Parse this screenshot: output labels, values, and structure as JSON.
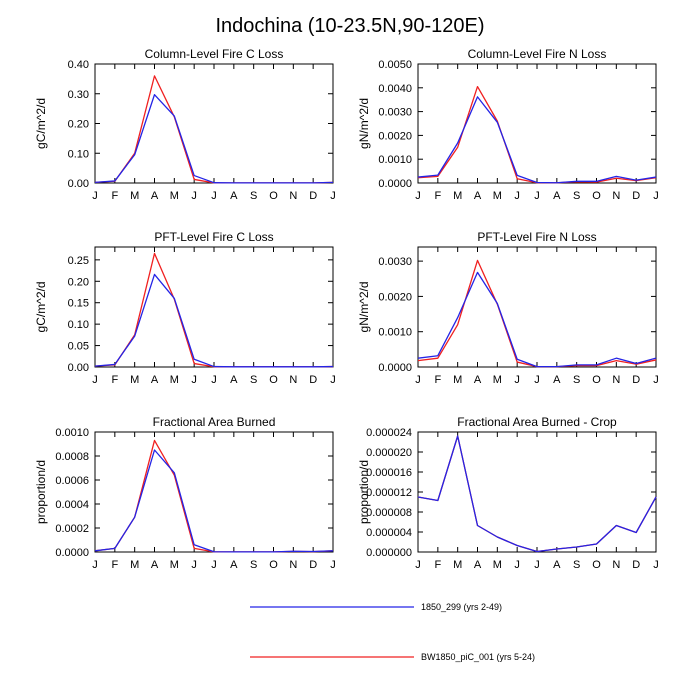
{
  "figure_title": "Indochina (10-23.5N,90-120E)",
  "colors": {
    "blue": "#2424e6",
    "red": "#f02020",
    "axis": "#000000"
  },
  "legend": [
    {
      "label": "1850_299 (yrs 2-49)",
      "color": "#2424e6"
    },
    {
      "label": "BW1850_piC_001 (yrs 5-24)",
      "color": "#f02020"
    }
  ],
  "chart_data": [
    {
      "type": "line",
      "title": "Column-Level Fire C Loss",
      "ylabel": "gC/m^2/d",
      "categories": [
        "J",
        "F",
        "M",
        "A",
        "M",
        "J",
        "J",
        "A",
        "S",
        "O",
        "N",
        "D",
        "J"
      ],
      "ylim": [
        0,
        0.4
      ],
      "yticks": [
        "0.00",
        "0.10",
        "0.20",
        "0.30",
        "0.40"
      ],
      "series": [
        {
          "name": "1850_299 (yrs 2-49)",
          "values": [
            0.002,
            0.007,
            0.095,
            0.297,
            0.225,
            0.025,
            0.001,
            0.0005,
            0.0005,
            0.0005,
            0.0005,
            0.0005,
            0.002
          ]
        },
        {
          "name": "BW1850_piC_001 (yrs 5-24)",
          "values": [
            0.002,
            0.006,
            0.1,
            0.36,
            0.222,
            0.012,
            0.0005,
            0.0005,
            0.0005,
            0.0005,
            0.0005,
            0.0005,
            0.002
          ]
        }
      ]
    },
    {
      "type": "line",
      "title": "Column-Level Fire N Loss",
      "ylabel": "gN/m^2/d",
      "categories": [
        "J",
        "F",
        "M",
        "A",
        "M",
        "J",
        "J",
        "A",
        "S",
        "O",
        "N",
        "D",
        "J"
      ],
      "ylim": [
        0,
        0.005
      ],
      "yticks": [
        "0.0000",
        "0.0010",
        "0.0020",
        "0.0030",
        "0.0040",
        "0.0050"
      ],
      "series": [
        {
          "name": "1850_299 (yrs 2-49)",
          "values": [
            0.00025,
            0.00033,
            0.00168,
            0.00362,
            0.00255,
            0.00032,
            2e-05,
            1e-05,
            7e-05,
            7e-05,
            0.00028,
            0.00012,
            0.00025
          ]
        },
        {
          "name": "BW1850_piC_001 (yrs 5-24)",
          "values": [
            0.00022,
            0.00028,
            0.0015,
            0.00405,
            0.0026,
            0.00018,
            1e-05,
            1e-05,
            5e-05,
            4e-05,
            0.0002,
            0.0001,
            0.00022
          ]
        }
      ]
    },
    {
      "type": "line",
      "title": "PFT-Level Fire C Loss",
      "ylabel": "gC/m^2/d",
      "categories": [
        "J",
        "F",
        "M",
        "A",
        "M",
        "J",
        "J",
        "A",
        "S",
        "O",
        "N",
        "D",
        "J"
      ],
      "ylim": [
        0,
        0.28
      ],
      "yticks": [
        "0.00",
        "0.05",
        "0.10",
        "0.15",
        "0.20",
        "0.25"
      ],
      "series": [
        {
          "name": "1850_299 (yrs 2-49)",
          "values": [
            0.002,
            0.006,
            0.072,
            0.216,
            0.16,
            0.018,
            0.001,
            0.0005,
            0.0005,
            0.0005,
            0.0005,
            0.0005,
            0.001
          ]
        },
        {
          "name": "BW1850_piC_001 (yrs 5-24)",
          "values": [
            0.002,
            0.005,
            0.075,
            0.265,
            0.158,
            0.008,
            0.0005,
            0.0005,
            0.0005,
            0.0005,
            0.0005,
            0.0005,
            0.001
          ]
        }
      ]
    },
    {
      "type": "line",
      "title": "PFT-Level Fire N Loss",
      "ylabel": "gN/m^2/d",
      "categories": [
        "J",
        "F",
        "M",
        "A",
        "M",
        "J",
        "J",
        "A",
        "S",
        "O",
        "N",
        "D",
        "J"
      ],
      "ylim": [
        0,
        0.0034
      ],
      "yticks": [
        "0.0000",
        "0.0010",
        "0.0020",
        "0.0030"
      ],
      "series": [
        {
          "name": "1850_299 (yrs 2-49)",
          "values": [
            0.00025,
            0.00032,
            0.0014,
            0.00268,
            0.0018,
            0.00022,
            1e-05,
            1e-05,
            6e-05,
            6e-05,
            0.00025,
            0.0001,
            0.00025
          ]
        },
        {
          "name": "BW1850_piC_001 (yrs 5-24)",
          "values": [
            0.00018,
            0.00025,
            0.0012,
            0.00302,
            0.00178,
            0.00014,
            1e-05,
            1e-05,
            4e-05,
            4e-05,
            0.00018,
            8e-05,
            0.0002
          ]
        }
      ]
    },
    {
      "type": "line",
      "title": "Fractional Area Burned",
      "ylabel": "proportion/d",
      "categories": [
        "J",
        "F",
        "M",
        "A",
        "M",
        "J",
        "J",
        "A",
        "S",
        "O",
        "N",
        "D",
        "J"
      ],
      "ylim": [
        0,
        0.001
      ],
      "yticks": [
        "0.0000",
        "0.0002",
        "0.0004",
        "0.0006",
        "0.0008",
        "0.0010"
      ],
      "series": [
        {
          "name": "1850_299 (yrs 2-49)",
          "values": [
            1e-05,
            3e-05,
            0.00029,
            0.00085,
            0.00066,
            6e-05,
            2e-06,
            1e-06,
            1e-06,
            1e-06,
            6e-06,
            4e-06,
            1e-05
          ]
        },
        {
          "name": "BW1850_piC_001 (yrs 5-24)",
          "values": [
            1e-05,
            3e-05,
            0.00029,
            0.00093,
            0.00064,
            3e-05,
            1e-06,
            1e-06,
            1e-06,
            1e-06,
            5e-06,
            3e-06,
            1e-05
          ]
        }
      ]
    },
    {
      "type": "line",
      "title": "Fractional Area Burned - Crop",
      "ylabel": "proportion/d",
      "categories": [
        "J",
        "F",
        "M",
        "A",
        "M",
        "J",
        "J",
        "A",
        "S",
        "O",
        "N",
        "D",
        "J"
      ],
      "ylim": [
        0,
        2.4e-05
      ],
      "yticks": [
        "0.000000",
        "0.000004",
        "0.000008",
        "0.000012",
        "0.000016",
        "0.000020",
        "0.000024"
      ],
      "series": [
        {
          "name": "1850_299 (yrs 2-49)",
          "values": [
            1.1e-05,
            1.03e-05,
            2.32e-05,
            5.3e-06,
            3e-06,
            1.3e-06,
            1e-07,
            6e-07,
            1e-06,
            1.6e-06,
            5.3e-06,
            3.9e-06,
            1.1e-05
          ]
        },
        {
          "name": "BW1850_piC_001 (yrs 5-24)",
          "values": [
            1.1e-05,
            1.03e-05,
            2.32e-05,
            5.3e-06,
            3e-06,
            1.3e-06,
            1e-07,
            6e-07,
            1e-06,
            1.6e-06,
            5.3e-06,
            3.9e-06,
            1.1e-05
          ]
        }
      ]
    }
  ]
}
